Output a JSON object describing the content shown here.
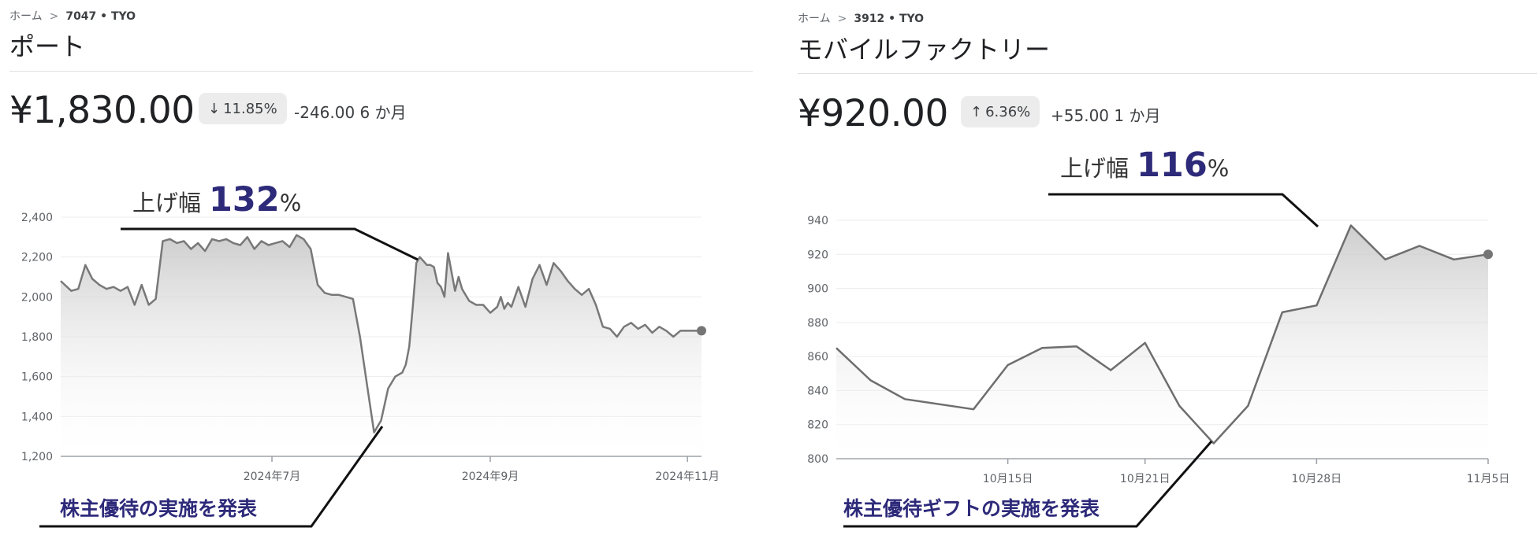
{
  "breadcrumb_home": "ホーム",
  "panels": [
    {
      "ticker": "7047 • TYO",
      "name": "ポート",
      "price": "¥1,830.00",
      "change_pct": "11.85%",
      "direction": "down",
      "change_abs": "-246.00 6 か月",
      "annotation_prefix": "上げ幅",
      "annotation_value": "132",
      "annotation_suffix": "%",
      "note": "株主優待の実施を発表"
    },
    {
      "ticker": "3912 • TYO",
      "name": "モバイルファクトリー",
      "price": "¥920.00",
      "change_pct": "6.36%",
      "direction": "up",
      "change_abs": "+55.00 1 か月",
      "annotation_prefix": "上げ幅",
      "annotation_value": "116",
      "annotation_suffix": "%",
      "note": "株主優待ギフトの実施を発表"
    }
  ],
  "chart_data": [
    {
      "type": "area",
      "title": "",
      "ylim": [
        1200,
        2400
      ],
      "yticks": [
        1200,
        1400,
        1600,
        1800,
        2000,
        2200,
        2400
      ],
      "xlim": [
        0,
        182
      ],
      "xticks": [
        {
          "x": 60,
          "label": "2024年7月"
        },
        {
          "x": 122,
          "label": "2024年9月"
        },
        {
          "x": 178,
          "label": "2024年11月"
        }
      ],
      "grid": true,
      "series": [
        {
          "x": [
            0,
            3,
            5,
            7,
            9,
            11,
            13,
            15,
            17,
            19,
            21,
            23,
            25,
            27,
            29,
            31,
            33,
            35,
            37,
            39,
            41,
            43,
            45,
            47,
            49,
            51,
            53,
            55,
            57,
            59,
            61,
            63,
            65,
            67,
            69,
            71,
            73,
            75,
            77,
            79,
            81,
            83,
            85,
            87,
            89,
            91,
            93,
            95,
            97,
            98,
            99,
            100,
            101,
            102,
            103,
            104,
            105,
            106,
            107,
            108,
            109,
            110,
            112,
            113,
            114,
            116,
            118,
            120,
            122,
            124,
            125,
            126,
            127,
            128,
            130,
            132,
            134,
            136,
            138,
            140,
            142,
            144,
            146,
            148,
            150,
            152,
            154,
            156,
            158,
            160,
            162,
            164,
            166,
            168,
            170,
            172,
            174,
            176,
            178,
            180,
            182
          ],
          "y": [
            2080,
            2030,
            2040,
            2160,
            2090,
            2060,
            2040,
            2050,
            2030,
            2050,
            1960,
            2060,
            1960,
            1990,
            2280,
            2290,
            2270,
            2280,
            2240,
            2270,
            2230,
            2290,
            2280,
            2290,
            2270,
            2260,
            2300,
            2240,
            2280,
            2260,
            2270,
            2280,
            2250,
            2310,
            2290,
            2240,
            2060,
            2020,
            2010,
            2010,
            2000,
            1990,
            1800,
            1560,
            1320,
            1380,
            1540,
            1600,
            1620,
            1660,
            1750,
            1950,
            2170,
            2200,
            2180,
            2160,
            2160,
            2150,
            2070,
            2050,
            2000,
            2220,
            2030,
            2100,
            2040,
            1980,
            1960,
            1960,
            1920,
            1950,
            2000,
            1940,
            1970,
            1950,
            2050,
            1950,
            2090,
            2160,
            2060,
            2170,
            2130,
            2080,
            2040,
            2010,
            2040,
            1960,
            1850,
            1840,
            1800,
            1850,
            1870,
            1840,
            1860,
            1820,
            1850,
            1830,
            1800,
            1830,
            1830,
            1830,
            1830
          ]
        }
      ],
      "last_value": 1830
    },
    {
      "type": "area",
      "title": "",
      "ylim": [
        800,
        940
      ],
      "yticks": [
        800,
        820,
        840,
        860,
        880,
        900,
        920,
        940
      ],
      "xlim": [
        0,
        38
      ],
      "xticks": [
        {
          "x": 10,
          "label": "10月15日"
        },
        {
          "x": 18,
          "label": "10月21日"
        },
        {
          "x": 28,
          "label": "10月28日"
        },
        {
          "x": 38,
          "label": "11月5日"
        }
      ],
      "grid": true,
      "series": [
        {
          "x": [
            0,
            2,
            4,
            8,
            10,
            12,
            14,
            16,
            18,
            20,
            22,
            24,
            26,
            28,
            30,
            32,
            34,
            36,
            38
          ],
          "y": [
            865,
            846,
            835,
            829,
            855,
            865,
            866,
            852,
            868,
            831,
            809,
            831,
            886,
            890,
            937,
            917,
            925,
            917,
            920
          ]
        }
      ],
      "last_value": 920
    }
  ]
}
